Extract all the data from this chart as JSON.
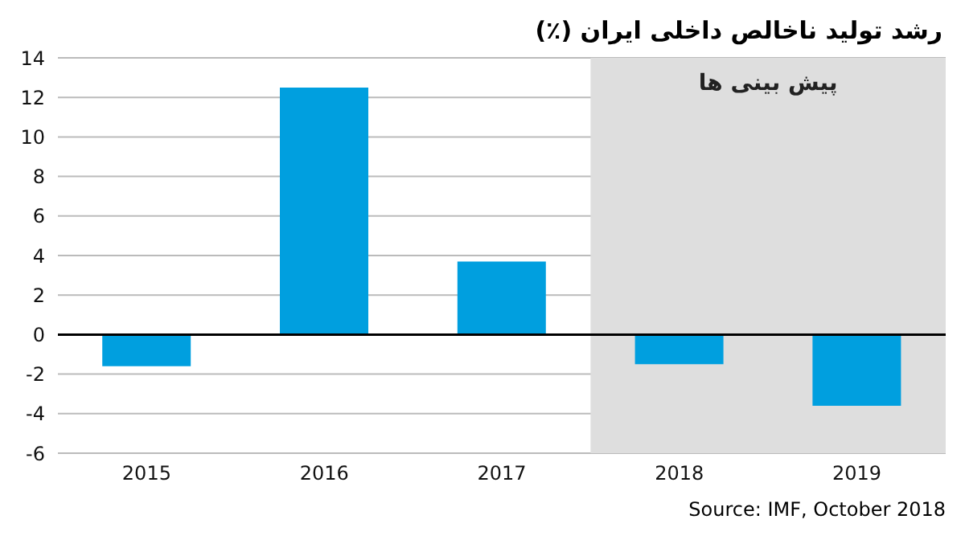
{
  "chart_data": {
    "type": "bar",
    "title": "رشد تولید ناخالص داخلی ایران (٪)",
    "categories": [
      "2015",
      "2016",
      "2017",
      "2018",
      "2019"
    ],
    "values": [
      -1.6,
      12.5,
      3.7,
      -1.5,
      -3.6
    ],
    "color": "#009fdf",
    "ylim": [
      -6,
      14
    ],
    "yticks": [
      -6,
      -4,
      -2,
      0,
      2,
      4,
      6,
      8,
      10,
      12,
      14
    ],
    "grid": "y",
    "bands": [
      {
        "axis": "x",
        "from": "2018",
        "to": "2019",
        "label": "پیش بینی ها",
        "color": "#dedede"
      }
    ],
    "annotations": [
      "Source: IMF, October 2018"
    ]
  }
}
